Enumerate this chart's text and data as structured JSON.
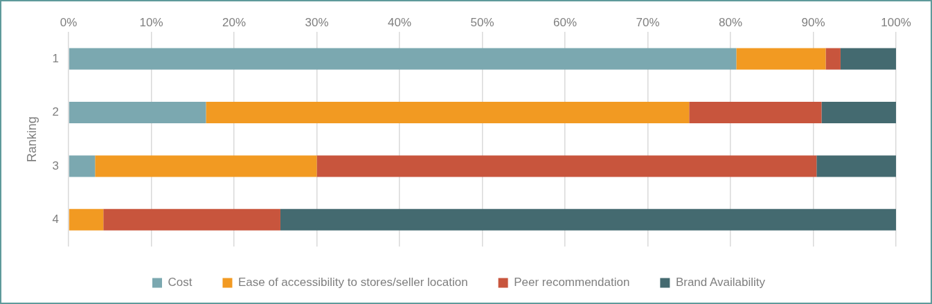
{
  "chart_data": {
    "type": "bar",
    "orientation": "horizontal",
    "stacked": true,
    "ylabel": "Ranking",
    "categories": [
      "1",
      "2",
      "3",
      "4"
    ],
    "series": [
      {
        "name": "Cost",
        "color": "#7ba8b0",
        "values": [
          80.7,
          16.6,
          3.2,
          0
        ]
      },
      {
        "name": "Ease of accessibility to stores/seller location",
        "color": "#f29a22",
        "values": [
          10.8,
          58.4,
          26.8,
          4.2
        ]
      },
      {
        "name": "Peer recommendation",
        "color": "#c8553d",
        "values": [
          1.8,
          16.0,
          60.4,
          21.4
        ]
      },
      {
        "name": "Brand Availability",
        "color": "#446a70",
        "values": [
          6.7,
          9.0,
          9.6,
          74.4
        ]
      }
    ],
    "xlim": [
      0,
      100
    ],
    "xticks": [
      {
        "value": 0,
        "label": "0%"
      },
      {
        "value": 10,
        "label": "10%"
      },
      {
        "value": 20,
        "label": "20%"
      },
      {
        "value": 30,
        "label": "30%"
      },
      {
        "value": 40,
        "label": "40%"
      },
      {
        "value": 50,
        "label": "50%"
      },
      {
        "value": 60,
        "label": "60%"
      },
      {
        "value": 70,
        "label": "70%"
      },
      {
        "value": 80,
        "label": "80%"
      },
      {
        "value": 90,
        "label": "90%"
      },
      {
        "value": 100,
        "label": "100%"
      }
    ],
    "grid": "x",
    "legend": "bottom"
  }
}
